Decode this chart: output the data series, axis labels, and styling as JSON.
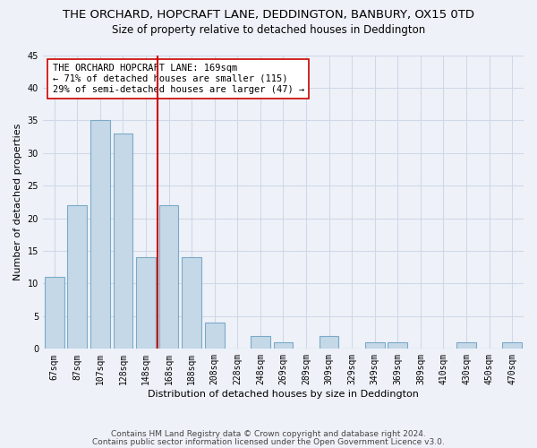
{
  "title1": "THE ORCHARD, HOPCRAFT LANE, DEDDINGTON, BANBURY, OX15 0TD",
  "title2": "Size of property relative to detached houses in Deddington",
  "xlabel": "Distribution of detached houses by size in Deddington",
  "ylabel": "Number of detached properties",
  "categories": [
    "67sqm",
    "87sqm",
    "107sqm",
    "128sqm",
    "148sqm",
    "168sqm",
    "188sqm",
    "208sqm",
    "228sqm",
    "248sqm",
    "269sqm",
    "289sqm",
    "309sqm",
    "329sqm",
    "349sqm",
    "369sqm",
    "389sqm",
    "410sqm",
    "430sqm",
    "450sqm",
    "470sqm"
  ],
  "values": [
    11,
    22,
    35,
    33,
    14,
    22,
    14,
    4,
    0,
    2,
    1,
    0,
    2,
    0,
    1,
    1,
    0,
    0,
    1,
    0,
    1
  ],
  "bar_color": "#c5d8e8",
  "bar_edge_color": "#7aaac8",
  "vline_color": "#cc0000",
  "vline_pos": 4.5,
  "annotation_text": "THE ORCHARD HOPCRAFT LANE: 169sqm\n← 71% of detached houses are smaller (115)\n29% of semi-detached houses are larger (47) →",
  "annotation_box_color": "#ffffff",
  "annotation_box_edge_color": "#cc0000",
  "ylim": [
    0,
    45
  ],
  "yticks": [
    0,
    5,
    10,
    15,
    20,
    25,
    30,
    35,
    40,
    45
  ],
  "grid_color": "#d0d8e8",
  "background_color": "#eef2f8",
  "footer1": "Contains HM Land Registry data © Crown copyright and database right 2024.",
  "footer2": "Contains public sector information licensed under the Open Government Licence v3.0.",
  "title1_fontsize": 9.5,
  "title2_fontsize": 8.5,
  "xlabel_fontsize": 8,
  "ylabel_fontsize": 8,
  "tick_fontsize": 7,
  "annotation_fontsize": 7.5,
  "footer_fontsize": 6.5
}
